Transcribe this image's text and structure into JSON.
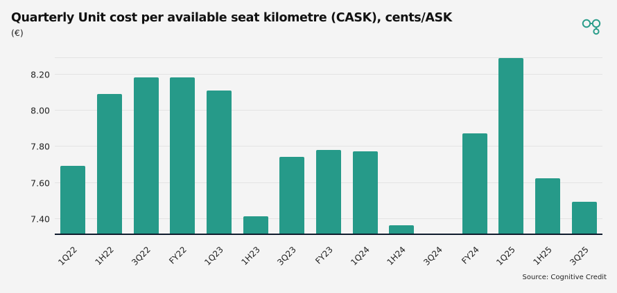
{
  "header": {
    "title": "Quarterly Unit cost per available seat kilometre (CASK), cents/ASK",
    "subtitle": "(€)",
    "logo_icon": "linked-circles-logo-icon"
  },
  "footer": {
    "source": "Source: Cognitive Credit"
  },
  "colors": {
    "bar": "#269a89",
    "background": "#f4f4f4",
    "gridline": "#e3e3e3",
    "axis": "#0e1a2b",
    "logo": "#2a9d8a"
  },
  "chart_data": {
    "type": "bar",
    "title": "Quarterly Unit cost per available seat kilometre (CASK), cents/ASK",
    "subtitle": "(€)",
    "xlabel": "",
    "ylabel": "",
    "categories": [
      "1Q22",
      "1H22",
      "3Q22",
      "FY22",
      "1Q23",
      "1H23",
      "3Q23",
      "FY23",
      "1Q24",
      "1H24",
      "3Q24",
      "FY24",
      "1Q25",
      "1H25",
      "3Q25"
    ],
    "values": [
      7.69,
      8.09,
      8.18,
      8.18,
      8.11,
      7.41,
      7.74,
      7.78,
      7.77,
      7.36,
      null,
      7.87,
      8.29,
      7.62,
      7.49
    ],
    "yticks": [
      "7.40",
      "7.60",
      "7.80",
      "8.00",
      "8.20"
    ],
    "ytick_values": [
      7.4,
      7.6,
      7.8,
      8.0,
      8.2
    ],
    "ylim": [
      7.313,
      8.292
    ],
    "grid": true,
    "legend": "none",
    "source": "Source: Cognitive Credit"
  }
}
